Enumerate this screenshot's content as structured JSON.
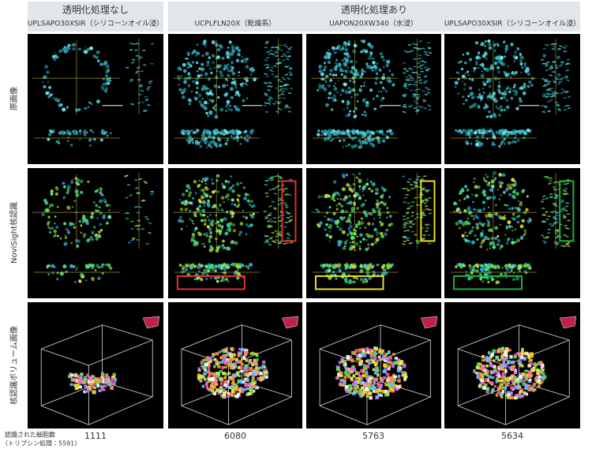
{
  "header": {
    "uncleared": {
      "title": "透明化処理なし",
      "objective": "UPLSAPO30XSIR（シリコーンオイル浸）"
    },
    "cleared": {
      "title": "透明化処理あり",
      "objectives": [
        "UCPLFLN20X（乾燥系）",
        "UAPON20XW340（水浸）",
        "UPLSAPO30XSIR（シリコーンオイル浸）"
      ]
    }
  },
  "rows": [
    "原画像",
    "NoviSight核認識",
    "核認識ボリューム画像"
  ],
  "cell_counts": {
    "label": "認識された細胞数",
    "note": "（トリプシン処理：5591）",
    "values": [
      1111,
      6080,
      5763,
      5634
    ]
  }
}
